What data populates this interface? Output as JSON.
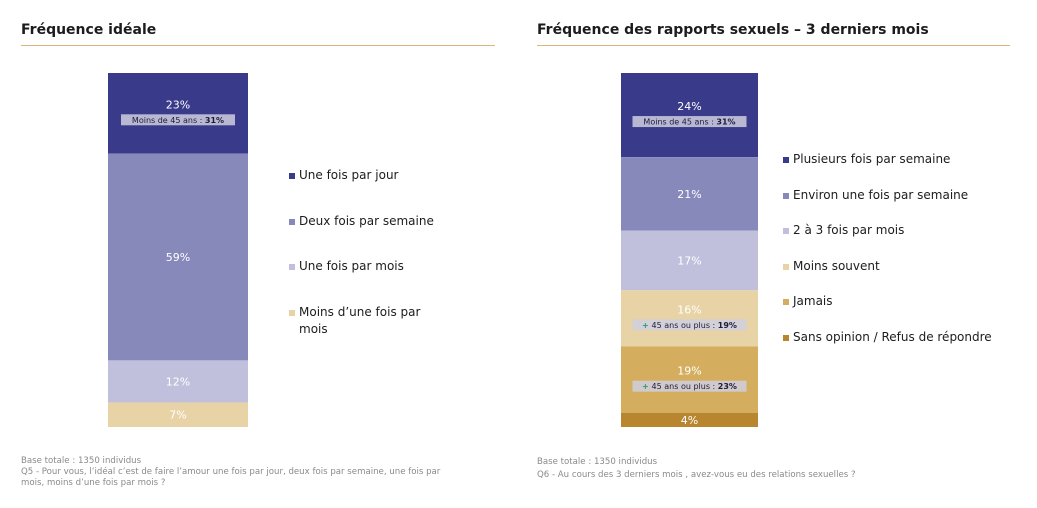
{
  "left": {
    "title": "Fréquence idéale",
    "base_text": "Base totale : 1350 individus",
    "question_text": "Q5 - Pour vous, l’idéal c’est de faire l’amour une fois par jour, deux fois par semaine, une fois par mois, moins d’une fois par mois ?"
  },
  "right": {
    "title": "Fréquence des rapports sexuels – 3 derniers mois",
    "base_text": "Base totale : 1350 individus",
    "question_text": "Q6 - Au cours des 3 derniers mois , avez-vous eu des relations sexuelles ?"
  },
  "chart_data": [
    {
      "type": "bar",
      "stacked": true,
      "title": "Fréquence idéale",
      "unit": "%",
      "legend_position": "right",
      "series": [
        {
          "name": "Une fois par jour",
          "value": 23,
          "label": "23%",
          "color": "#3a3a8a",
          "label_color": "#ffffff",
          "annotation": {
            "prefix": "Moins de 45 ans : ",
            "value": "31%",
            "sign": ""
          }
        },
        {
          "name": "Deux fois par semaine",
          "value": 59,
          "label": "59%",
          "color": "#8889bb",
          "label_color": "#ffffff"
        },
        {
          "name": "Une fois par mois",
          "value": 12,
          "label": "12%",
          "color": "#c0c0dd",
          "label_color": "#ffffff"
        },
        {
          "name": "Moins d’une fois par mois",
          "value": 7,
          "label": "7%",
          "color": "#e8d3a6",
          "label_color": "#ffffff"
        }
      ]
    },
    {
      "type": "bar",
      "stacked": true,
      "title": "Fréquence des rapports sexuels – 3 derniers mois",
      "unit": "%",
      "legend_position": "right",
      "series": [
        {
          "name": "Plusieurs fois par semaine",
          "value": 24,
          "label": "24%",
          "color": "#3a3a8a",
          "label_color": "#ffffff",
          "annotation": {
            "prefix": "Moins de 45 ans : ",
            "value": "31%",
            "sign": ""
          }
        },
        {
          "name": "Environ une fois par semaine",
          "value": 21,
          "label": "21%",
          "color": "#8889bb",
          "label_color": "#ffffff"
        },
        {
          "name": "2 à 3 fois par mois",
          "value": 17,
          "label": "17%",
          "color": "#c0c0dd",
          "label_color": "#ffffff"
        },
        {
          "name": "Moins souvent",
          "value": 16,
          "label": "16%",
          "color": "#e8d3a6",
          "label_color": "#ffffff",
          "annotation": {
            "prefix": "45 ans ou plus : ",
            "value": "19%",
            "sign": "+"
          }
        },
        {
          "name": "Jamais",
          "value": 19,
          "label": "19%",
          "color": "#d4ae5e",
          "label_color": "#ffffff",
          "annotation": {
            "prefix": "45 ans ou plus : ",
            "value": "23%",
            "sign": "+"
          }
        },
        {
          "name": "Sans opinion / Refus de répondre",
          "value": 4,
          "label": "4%",
          "color": "#b8862f",
          "label_color": "#ffffff"
        }
      ]
    }
  ]
}
